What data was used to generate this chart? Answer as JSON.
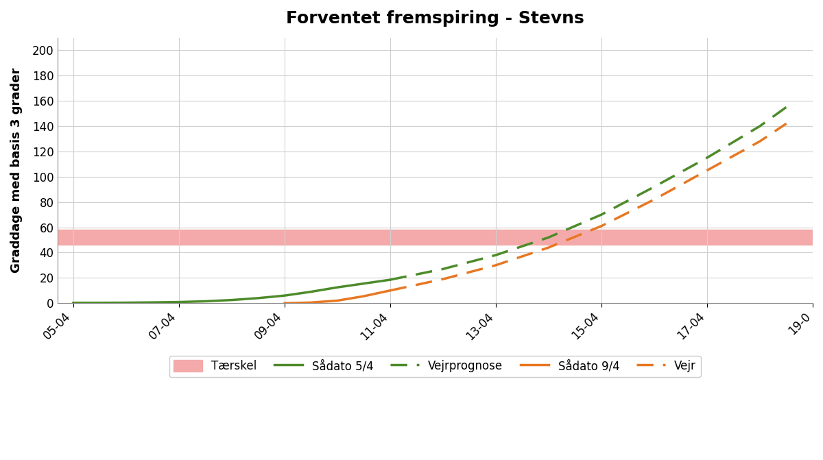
{
  "title": "Forventet fremspiring - Stevns",
  "ylabel": "Graddage med basis 3 grader",
  "ylim": [
    0,
    210
  ],
  "yticks": [
    0,
    20,
    40,
    60,
    80,
    100,
    120,
    140,
    160,
    180,
    200
  ],
  "xtick_labels": [
    "05-04",
    "07-04",
    "09-04",
    "11-04",
    "13-04",
    "15-04",
    "17-04",
    "19-0"
  ],
  "threshold_low": 46,
  "threshold_high": 58,
  "threshold_color": "#F4AAAA",
  "sadato5_solid_x": [
    0,
    0.5,
    1,
    1.5,
    2,
    2.5,
    3,
    3.5,
    4,
    4.5,
    5,
    5.5,
    6
  ],
  "sadato5_solid_y": [
    0.3,
    0.3,
    0.4,
    0.6,
    0.9,
    1.5,
    2.5,
    4.0,
    6.0,
    9.0,
    12.5,
    15.5,
    18.5
  ],
  "sadato5_dashed_x": [
    6,
    7,
    8,
    9,
    10,
    11,
    12,
    13,
    13.5
  ],
  "sadato5_dashed_y": [
    18.5,
    27.0,
    38.0,
    52.0,
    70.0,
    92.0,
    115.0,
    140.0,
    155.0
  ],
  "sadato9_solid_x": [
    4,
    4.5,
    5,
    5.5,
    6
  ],
  "sadato9_solid_y": [
    0,
    0.5,
    2.0,
    5.5,
    10.0
  ],
  "sadato9_dashed_x": [
    6,
    7,
    8,
    9,
    10,
    11,
    12,
    13,
    13.5
  ],
  "sadato9_dashed_y": [
    10.0,
    19.0,
    30.0,
    44.0,
    61.0,
    82.0,
    105.0,
    128.0,
    142.0
  ],
  "color_green": "#4D8B2A",
  "color_orange": "#E87722",
  "background_color": "#FFFFFF",
  "grid_color": "#D0D0D0",
  "xlim_min": -0.3,
  "xlim_max": 13.8
}
